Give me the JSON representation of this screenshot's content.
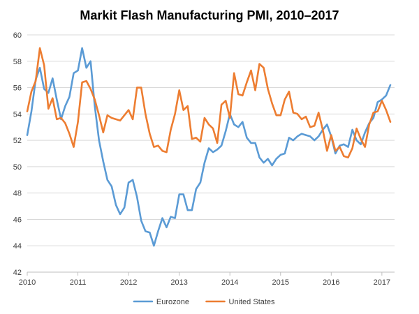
{
  "chart_data": {
    "type": "line",
    "title": "Markit Flash Manufacturing PMI, 2010–2017",
    "xlabel": "",
    "ylabel": "",
    "xlim": [
      2010,
      2017.25
    ],
    "ylim": [
      42,
      60
    ],
    "yticks": [
      42,
      44,
      46,
      48,
      50,
      52,
      54,
      56,
      58,
      60
    ],
    "xticks": [
      2010,
      2011,
      2012,
      2013,
      2014,
      2015,
      2016,
      2017
    ],
    "grid": true,
    "legend_position": "bottom",
    "series": [
      {
        "name": "Eurozone",
        "color": "#5b9bd5",
        "x": [
          2010.0,
          2010.083,
          2010.167,
          2010.25,
          2010.333,
          2010.417,
          2010.5,
          2010.583,
          2010.667,
          2010.75,
          2010.833,
          2010.917,
          2011.0,
          2011.083,
          2011.167,
          2011.25,
          2011.333,
          2011.417,
          2011.5,
          2011.583,
          2011.667,
          2011.75,
          2011.833,
          2011.917,
          2012.0,
          2012.083,
          2012.167,
          2012.25,
          2012.333,
          2012.417,
          2012.5,
          2012.583,
          2012.667,
          2012.75,
          2012.833,
          2012.917,
          2013.0,
          2013.083,
          2013.167,
          2013.25,
          2013.333,
          2013.417,
          2013.5,
          2013.583,
          2013.667,
          2013.75,
          2013.833,
          2013.917,
          2014.0,
          2014.083,
          2014.167,
          2014.25,
          2014.333,
          2014.417,
          2014.5,
          2014.583,
          2014.667,
          2014.75,
          2014.833,
          2014.917,
          2015.0,
          2015.083,
          2015.167,
          2015.25,
          2015.333,
          2015.417,
          2015.5,
          2015.583,
          2015.667,
          2015.75,
          2015.833,
          2015.917,
          2016.0,
          2016.083,
          2016.167,
          2016.25,
          2016.333,
          2016.417,
          2016.5,
          2016.583,
          2016.667,
          2016.75,
          2016.833,
          2016.917,
          2017.0,
          2017.083,
          2017.167
        ],
        "values": [
          52.4,
          54.2,
          56.6,
          57.5,
          55.9,
          55.6,
          56.7,
          55.1,
          53.6,
          54.6,
          55.3,
          57.1,
          57.3,
          59.0,
          57.5,
          58.0,
          54.6,
          52.0,
          50.4,
          49.0,
          48.5,
          47.1,
          46.4,
          46.9,
          48.8,
          49.0,
          47.7,
          45.9,
          45.1,
          45.0,
          44.0,
          45.1,
          46.1,
          45.4,
          46.2,
          46.1,
          47.9,
          47.9,
          46.7,
          46.7,
          48.3,
          48.8,
          50.3,
          51.4,
          51.1,
          51.3,
          51.6,
          52.7,
          54.0,
          53.2,
          53.0,
          53.4,
          52.2,
          51.8,
          51.8,
          50.7,
          50.3,
          50.6,
          50.1,
          50.6,
          50.9,
          51.0,
          52.2,
          52.0,
          52.3,
          52.5,
          52.4,
          52.3,
          52.0,
          52.3,
          52.8,
          53.2,
          52.3,
          51.0,
          51.6,
          51.7,
          51.5,
          52.8,
          52.0,
          51.7,
          52.6,
          53.3,
          53.7,
          54.9,
          55.1,
          55.4,
          56.2
        ]
      },
      {
        "name": "United States",
        "color": "#ed7d31",
        "x": [
          2010.0,
          2010.083,
          2010.167,
          2010.25,
          2010.333,
          2010.417,
          2010.5,
          2010.583,
          2010.667,
          2010.75,
          2010.833,
          2010.917,
          2011.0,
          2011.083,
          2011.167,
          2011.25,
          2011.333,
          2011.417,
          2011.5,
          2011.583,
          2011.667,
          2011.75,
          2011.833,
          2011.917,
          2012.0,
          2012.083,
          2012.167,
          2012.25,
          2012.333,
          2012.417,
          2012.5,
          2012.583,
          2012.667,
          2012.75,
          2012.833,
          2012.917,
          2013.0,
          2013.083,
          2013.167,
          2013.25,
          2013.333,
          2013.417,
          2013.5,
          2013.583,
          2013.667,
          2013.75,
          2013.833,
          2013.917,
          2014.0,
          2014.083,
          2014.167,
          2014.25,
          2014.333,
          2014.417,
          2014.5,
          2014.583,
          2014.667,
          2014.75,
          2014.833,
          2014.917,
          2015.0,
          2015.083,
          2015.167,
          2015.25,
          2015.333,
          2015.417,
          2015.5,
          2015.583,
          2015.667,
          2015.75,
          2015.833,
          2015.917,
          2016.0,
          2016.083,
          2016.167,
          2016.25,
          2016.333,
          2016.417,
          2016.5,
          2016.583,
          2016.667,
          2016.75,
          2016.833,
          2016.917,
          2017.0,
          2017.083,
          2017.167
        ],
        "values": [
          54.2,
          55.7,
          56.5,
          59.0,
          57.7,
          54.4,
          55.2,
          53.6,
          53.7,
          53.3,
          52.5,
          51.5,
          53.4,
          56.4,
          56.5,
          55.9,
          55.1,
          53.9,
          52.6,
          53.9,
          53.7,
          53.6,
          53.5,
          53.9,
          54.3,
          53.6,
          56.0,
          56.0,
          54.0,
          52.5,
          51.5,
          51.6,
          51.2,
          51.1,
          52.8,
          54.0,
          55.8,
          54.3,
          54.6,
          52.1,
          52.2,
          51.9,
          53.7,
          53.2,
          52.9,
          51.8,
          54.7,
          55.0,
          53.7,
          57.1,
          55.5,
          55.4,
          56.4,
          57.3,
          55.8,
          57.8,
          57.5,
          55.9,
          54.8,
          53.9,
          53.9,
          55.1,
          55.7,
          54.1,
          54.0,
          53.6,
          53.8,
          53.0,
          53.1,
          54.1,
          52.8,
          51.2,
          52.4,
          51.2,
          51.5,
          50.8,
          50.7,
          51.4,
          52.9,
          52.1,
          51.5,
          53.2,
          54.1,
          54.2,
          55.0,
          54.3,
          53.4
        ]
      }
    ]
  }
}
